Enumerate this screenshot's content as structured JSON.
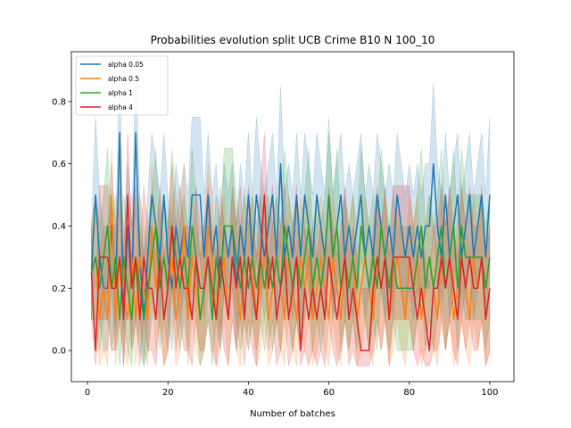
{
  "chart_data": {
    "type": "line",
    "title": "Probabilities evolution split UCB Crime B10 N 100_10",
    "xlabel": "Number of batches",
    "ylabel": "",
    "xlim": [
      -4,
      106
    ],
    "ylim": [
      -0.1,
      0.96
    ],
    "xticks": [
      0,
      20,
      40,
      60,
      80,
      100
    ],
    "yticks": [
      0.0,
      0.2,
      0.4,
      0.6,
      0.8
    ],
    "ytick_labels": [
      "0.0",
      "0.2",
      "0.4",
      "0.6",
      "0.8"
    ],
    "grid": false,
    "legend_position": "upper-left",
    "band_opacity": 0.2,
    "series": [
      {
        "name": "alpha 0.05",
        "color": "#1f77b4",
        "start": 1,
        "values": [
          0.25,
          0.5,
          0.3,
          0.2,
          0.2,
          0.4,
          0.2,
          0.7,
          0.1,
          0.4,
          0.2,
          0.7,
          0.3,
          0.1,
          0.3,
          0.5,
          0.4,
          0.3,
          0.5,
          0.3,
          0.2,
          0.4,
          0.3,
          0.4,
          0.3,
          0.5,
          0.5,
          0.5,
          0.3,
          0.5,
          0.3,
          0.4,
          0.2,
          0.4,
          0.3,
          0.4,
          0.2,
          0.4,
          0.3,
          0.5,
          0.3,
          0.5,
          0.4,
          0.3,
          0.4,
          0.5,
          0.3,
          0.6,
          0.3,
          0.4,
          0.3,
          0.5,
          0.3,
          0.5,
          0.4,
          0.3,
          0.5,
          0.4,
          0.3,
          0.5,
          0.3,
          0.4,
          0.5,
          0.3,
          0.4,
          0.3,
          0.4,
          0.5,
          0.3,
          0.4,
          0.3,
          0.5,
          0.4,
          0.3,
          0.4,
          0.3,
          0.5,
          0.4,
          0.3,
          0.4,
          0.3,
          0.4,
          0.3,
          0.4,
          0.4,
          0.6,
          0.4,
          0.3,
          0.5,
          0.3,
          0.4,
          0.5,
          0.3,
          0.4,
          0.5,
          0.3,
          0.4,
          0.5,
          0.3,
          0.5
        ],
        "lower": [
          0.1,
          0.3,
          0.1,
          0.0,
          0.0,
          0.2,
          0.0,
          0.45,
          -0.05,
          0.2,
          0.0,
          0.45,
          0.1,
          -0.05,
          0.1,
          0.3,
          0.2,
          0.1,
          0.3,
          0.1,
          0.0,
          0.2,
          0.1,
          0.2,
          0.1,
          0.3,
          0.3,
          0.3,
          0.1,
          0.3,
          0.1,
          0.2,
          0.0,
          0.2,
          0.1,
          0.2,
          0.0,
          0.2,
          0.1,
          0.3,
          0.1,
          0.3,
          0.2,
          0.1,
          0.2,
          0.3,
          0.1,
          0.35,
          0.1,
          0.2,
          0.1,
          0.3,
          0.1,
          0.3,
          0.2,
          0.1,
          0.3,
          0.2,
          0.1,
          0.3,
          0.1,
          0.2,
          0.3,
          0.1,
          0.2,
          0.1,
          0.2,
          0.3,
          0.1,
          0.2,
          0.1,
          0.3,
          0.2,
          0.1,
          0.2,
          0.1,
          0.3,
          0.2,
          0.1,
          0.2,
          0.1,
          0.2,
          0.1,
          0.2,
          0.2,
          0.4,
          0.2,
          0.1,
          0.3,
          0.1,
          0.2,
          0.3,
          0.1,
          0.2,
          0.3,
          0.1,
          0.2,
          0.3,
          0.1,
          0.3
        ],
        "upper": [
          0.4,
          0.75,
          0.5,
          0.4,
          0.4,
          0.6,
          0.4,
          0.9,
          0.3,
          0.6,
          0.4,
          0.92,
          0.5,
          0.3,
          0.5,
          0.7,
          0.6,
          0.5,
          0.7,
          0.5,
          0.4,
          0.6,
          0.5,
          0.6,
          0.5,
          0.75,
          0.75,
          0.75,
          0.5,
          0.7,
          0.5,
          0.6,
          0.4,
          0.6,
          0.5,
          0.6,
          0.4,
          0.6,
          0.5,
          0.7,
          0.5,
          0.75,
          0.6,
          0.5,
          0.6,
          0.7,
          0.5,
          0.85,
          0.5,
          0.6,
          0.5,
          0.7,
          0.5,
          0.7,
          0.6,
          0.5,
          0.7,
          0.6,
          0.5,
          0.7,
          0.5,
          0.6,
          0.7,
          0.5,
          0.6,
          0.5,
          0.6,
          0.7,
          0.5,
          0.6,
          0.5,
          0.7,
          0.6,
          0.5,
          0.6,
          0.5,
          0.7,
          0.6,
          0.5,
          0.6,
          0.5,
          0.6,
          0.5,
          0.6,
          0.6,
          0.86,
          0.6,
          0.5,
          0.7,
          0.5,
          0.6,
          0.7,
          0.5,
          0.6,
          0.7,
          0.5,
          0.6,
          0.7,
          0.5,
          0.75
        ]
      },
      {
        "name": "alpha 0.5",
        "color": "#ff7f0e",
        "start": 1,
        "values": [
          0.25,
          0.3,
          0.1,
          0.2,
          0.1,
          0.5,
          0.1,
          0.3,
          0.2,
          0.1,
          0.3,
          0.1,
          0.3,
          0.2,
          0.1,
          0.4,
          0.2,
          0.3,
          0.1,
          0.2,
          0.3,
          0.1,
          0.2,
          0.4,
          0.1,
          0.3,
          0.2,
          0.1,
          0.2,
          0.4,
          0.3,
          0.1,
          0.2,
          0.3,
          0.1,
          0.3,
          0.2,
          0.1,
          0.3,
          0.2,
          0.3,
          0.1,
          0.2,
          0.3,
          0.1,
          0.2,
          0.3,
          0.2,
          0.1,
          0.3,
          0.2,
          0.1,
          0.3,
          0.2,
          0.3,
          0.1,
          0.2,
          0.3,
          0.2,
          0.1,
          0.3,
          0.2,
          0.1,
          0.3,
          0.2,
          0.3,
          0.1,
          0.2,
          0.3,
          0.2,
          0.1,
          0.3,
          0.2,
          0.3,
          0.1,
          0.2,
          0.3,
          0.2,
          0.1,
          0.3,
          0.2,
          0.3,
          0.1,
          0.2,
          0.3,
          0.2,
          0.1,
          0.3,
          0.2,
          0.3,
          0.1,
          0.2,
          0.3,
          0.2,
          0.1,
          0.3,
          0.2,
          0.3,
          0.1,
          0.2
        ],
        "lower": [
          0.1,
          0.1,
          -0.05,
          0.0,
          -0.05,
          0.3,
          -0.05,
          0.1,
          0.0,
          -0.05,
          0.1,
          -0.05,
          0.1,
          0.0,
          -0.05,
          0.2,
          0.0,
          0.1,
          -0.05,
          0.0,
          0.1,
          -0.05,
          0.0,
          0.2,
          -0.05,
          0.1,
          0.0,
          -0.05,
          0.0,
          0.2,
          0.1,
          -0.05,
          0.0,
          0.1,
          -0.05,
          0.1,
          0.0,
          -0.05,
          0.1,
          0.0,
          0.1,
          -0.05,
          0.0,
          0.1,
          -0.05,
          0.0,
          0.1,
          0.0,
          -0.05,
          0.1,
          0.0,
          -0.05,
          0.1,
          0.0,
          0.1,
          -0.05,
          0.0,
          0.1,
          0.0,
          -0.05,
          0.1,
          0.0,
          -0.05,
          0.1,
          0.0,
          0.1,
          -0.05,
          0.0,
          0.1,
          0.0,
          -0.05,
          0.1,
          0.0,
          0.1,
          -0.05,
          0.0,
          0.1,
          0.0,
          -0.05,
          0.1,
          0.0,
          0.1,
          -0.05,
          0.0,
          0.1,
          0.0,
          -0.05,
          0.1,
          0.0,
          0.1,
          -0.05,
          0.0,
          0.1,
          0.0,
          -0.05,
          0.1,
          0.0,
          0.1,
          -0.05,
          0.0
        ],
        "upper": [
          0.4,
          0.5,
          0.3,
          0.4,
          0.3,
          0.65,
          0.3,
          0.5,
          0.4,
          0.3,
          0.5,
          0.3,
          0.5,
          0.4,
          0.3,
          0.6,
          0.4,
          0.5,
          0.3,
          0.4,
          0.5,
          0.3,
          0.4,
          0.6,
          0.3,
          0.5,
          0.4,
          0.3,
          0.4,
          0.6,
          0.5,
          0.3,
          0.4,
          0.5,
          0.3,
          0.5,
          0.4,
          0.3,
          0.5,
          0.4,
          0.5,
          0.3,
          0.4,
          0.5,
          0.3,
          0.4,
          0.5,
          0.4,
          0.3,
          0.5,
          0.4,
          0.3,
          0.5,
          0.4,
          0.5,
          0.3,
          0.4,
          0.5,
          0.4,
          0.3,
          0.5,
          0.4,
          0.3,
          0.5,
          0.4,
          0.5,
          0.3,
          0.4,
          0.5,
          0.4,
          0.3,
          0.5,
          0.4,
          0.5,
          0.3,
          0.4,
          0.5,
          0.4,
          0.3,
          0.5,
          0.4,
          0.5,
          0.3,
          0.4,
          0.5,
          0.4,
          0.3,
          0.5,
          0.4,
          0.5,
          0.3,
          0.4,
          0.5,
          0.4,
          0.3,
          0.5,
          0.4,
          0.5,
          0.3,
          0.4
        ]
      },
      {
        "name": "alpha 1",
        "color": "#2ca02c",
        "start": 1,
        "values": [
          0.25,
          0.3,
          0.2,
          0.3,
          0.4,
          0.2,
          0.3,
          0.1,
          0.3,
          0.2,
          0.1,
          0.3,
          0.2,
          0.1,
          0.2,
          0.3,
          0.4,
          0.2,
          0.3,
          0.2,
          0.4,
          0.3,
          0.2,
          0.3,
          0.2,
          0.4,
          0.3,
          0.1,
          0.2,
          0.3,
          0.1,
          0.3,
          0.2,
          0.4,
          0.4,
          0.4,
          0.3,
          0.2,
          0.3,
          0.2,
          0.3,
          0.2,
          0.3,
          0.2,
          0.3,
          0.2,
          0.3,
          0.2,
          0.4,
          0.3,
          0.2,
          0.3,
          0.2,
          0.3,
          0.4,
          0.2,
          0.3,
          0.2,
          0.3,
          0.5,
          0.3,
          0.4,
          0.2,
          0.3,
          0.2,
          0.3,
          0.2,
          0.4,
          0.3,
          0.2,
          0.3,
          0.2,
          0.4,
          0.3,
          0.2,
          0.3,
          0.2,
          0.2,
          0.2,
          0.2,
          0.2,
          0.3,
          0.4,
          0.2,
          0.3,
          0.2,
          0.3,
          0.4,
          0.2,
          0.3,
          0.4,
          0.2,
          0.4,
          0.3,
          0.3,
          0.3,
          0.3,
          0.3,
          0.2,
          0.3
        ],
        "lower": [
          0.1,
          0.1,
          0.0,
          0.1,
          0.2,
          0.0,
          0.1,
          -0.05,
          0.1,
          0.0,
          -0.05,
          0.1,
          0.0,
          -0.05,
          0.0,
          0.1,
          0.2,
          0.0,
          0.1,
          0.0,
          0.2,
          0.1,
          0.0,
          0.1,
          0.0,
          0.2,
          0.1,
          -0.05,
          0.0,
          0.1,
          -0.05,
          0.1,
          0.0,
          0.2,
          0.2,
          0.2,
          0.1,
          0.0,
          0.1,
          0.0,
          0.1,
          0.0,
          0.1,
          0.0,
          0.1,
          0.0,
          0.1,
          0.0,
          0.2,
          0.1,
          0.0,
          0.1,
          0.0,
          0.1,
          0.2,
          0.0,
          0.1,
          0.0,
          0.1,
          0.3,
          0.1,
          0.2,
          0.0,
          0.1,
          0.0,
          0.1,
          0.0,
          0.2,
          0.1,
          0.0,
          0.1,
          0.0,
          0.2,
          0.1,
          0.0,
          0.1,
          0.0,
          0.0,
          0.0,
          0.0,
          0.0,
          0.1,
          0.2,
          0.0,
          0.1,
          0.0,
          0.1,
          0.2,
          0.0,
          0.1,
          0.2,
          0.0,
          0.2,
          0.1,
          0.1,
          0.1,
          0.1,
          0.1,
          0.0,
          0.1
        ],
        "upper": [
          0.4,
          0.5,
          0.4,
          0.5,
          0.65,
          0.4,
          0.5,
          0.3,
          0.5,
          0.4,
          0.3,
          0.5,
          0.4,
          0.3,
          0.4,
          0.5,
          0.65,
          0.4,
          0.5,
          0.4,
          0.65,
          0.5,
          0.4,
          0.5,
          0.4,
          0.65,
          0.5,
          0.3,
          0.4,
          0.5,
          0.3,
          0.5,
          0.4,
          0.65,
          0.65,
          0.65,
          0.5,
          0.4,
          0.5,
          0.4,
          0.5,
          0.4,
          0.5,
          0.4,
          0.5,
          0.4,
          0.5,
          0.4,
          0.65,
          0.5,
          0.4,
          0.5,
          0.4,
          0.5,
          0.65,
          0.4,
          0.5,
          0.4,
          0.5,
          0.75,
          0.5,
          0.65,
          0.4,
          0.5,
          0.4,
          0.5,
          0.4,
          0.65,
          0.5,
          0.4,
          0.5,
          0.4,
          0.65,
          0.5,
          0.4,
          0.5,
          0.4,
          0.4,
          0.4,
          0.4,
          0.4,
          0.5,
          0.65,
          0.4,
          0.5,
          0.4,
          0.5,
          0.65,
          0.4,
          0.5,
          0.65,
          0.4,
          0.65,
          0.5,
          0.5,
          0.5,
          0.5,
          0.5,
          0.4,
          0.5
        ]
      },
      {
        "name": "alpha 4",
        "color": "#d62728",
        "start": 1,
        "values": [
          0.25,
          0.0,
          0.3,
          0.3,
          0.3,
          0.2,
          0.2,
          0.3,
          0.1,
          0.5,
          0.2,
          0.3,
          0.1,
          0.3,
          0.2,
          0.2,
          0.1,
          0.3,
          0.1,
          0.2,
          0.4,
          0.2,
          0.3,
          0.2,
          0.2,
          0.1,
          0.3,
          0.2,
          0.2,
          0.3,
          0.2,
          0.1,
          0.3,
          0.2,
          0.1,
          0.3,
          0.2,
          0.3,
          0.1,
          0.3,
          0.2,
          0.1,
          0.3,
          0.5,
          0.2,
          0.3,
          0.1,
          0.2,
          0.3,
          0.1,
          0.2,
          0.3,
          0.0,
          0.2,
          0.1,
          0.2,
          0.1,
          0.2,
          0.1,
          0.3,
          0.2,
          0.1,
          0.2,
          0.3,
          0.1,
          0.2,
          0.1,
          0.0,
          0.0,
          0.0,
          0.2,
          0.3,
          0.2,
          0.3,
          0.1,
          0.3,
          0.3,
          0.3,
          0.3,
          0.3,
          0.2,
          0.1,
          0.2,
          0.1,
          0.0,
          0.2,
          0.2,
          0.3,
          0.2,
          0.3,
          0.2,
          0.1,
          0.3,
          0.2,
          0.3,
          0.2,
          0.2,
          0.3,
          0.1,
          0.2
        ],
        "lower": [
          0.1,
          -0.05,
          0.1,
          0.1,
          0.1,
          0.0,
          0.0,
          0.1,
          -0.05,
          0.3,
          0.0,
          0.1,
          -0.05,
          0.1,
          0.0,
          0.0,
          -0.05,
          0.1,
          -0.05,
          0.0,
          0.2,
          0.0,
          0.1,
          0.0,
          0.0,
          -0.05,
          0.1,
          0.0,
          0.0,
          0.1,
          0.0,
          -0.05,
          0.1,
          0.0,
          -0.05,
          0.1,
          0.0,
          0.1,
          -0.05,
          0.1,
          0.0,
          -0.05,
          0.1,
          0.3,
          0.0,
          0.1,
          -0.05,
          0.0,
          0.1,
          -0.05,
          0.0,
          0.1,
          -0.05,
          0.0,
          -0.05,
          0.0,
          -0.05,
          0.0,
          -0.05,
          0.1,
          0.0,
          -0.05,
          0.0,
          0.1,
          -0.05,
          0.0,
          -0.05,
          -0.05,
          -0.05,
          -0.05,
          0.0,
          0.1,
          0.0,
          0.1,
          -0.05,
          0.1,
          0.1,
          0.1,
          0.1,
          0.1,
          0.0,
          -0.05,
          0.0,
          -0.05,
          -0.05,
          0.0,
          0.0,
          0.1,
          0.0,
          0.1,
          0.0,
          -0.05,
          0.1,
          0.0,
          0.1,
          0.0,
          0.0,
          0.1,
          -0.05,
          0.0
        ],
        "upper": [
          0.4,
          0.2,
          0.53,
          0.53,
          0.53,
          0.4,
          0.4,
          0.53,
          0.3,
          0.7,
          0.4,
          0.53,
          0.3,
          0.53,
          0.4,
          0.4,
          0.3,
          0.53,
          0.3,
          0.4,
          0.6,
          0.4,
          0.53,
          0.4,
          0.4,
          0.3,
          0.53,
          0.4,
          0.4,
          0.53,
          0.4,
          0.3,
          0.53,
          0.4,
          0.3,
          0.53,
          0.4,
          0.53,
          0.3,
          0.53,
          0.4,
          0.3,
          0.53,
          0.7,
          0.4,
          0.53,
          0.3,
          0.4,
          0.53,
          0.3,
          0.4,
          0.53,
          0.2,
          0.4,
          0.3,
          0.4,
          0.3,
          0.4,
          0.3,
          0.53,
          0.4,
          0.3,
          0.4,
          0.53,
          0.3,
          0.4,
          0.3,
          0.2,
          0.2,
          0.2,
          0.4,
          0.53,
          0.4,
          0.53,
          0.3,
          0.53,
          0.53,
          0.53,
          0.53,
          0.53,
          0.4,
          0.3,
          0.4,
          0.3,
          0.2,
          0.4,
          0.4,
          0.53,
          0.4,
          0.53,
          0.4,
          0.3,
          0.53,
          0.4,
          0.53,
          0.4,
          0.4,
          0.53,
          0.3,
          0.4
        ]
      }
    ]
  }
}
